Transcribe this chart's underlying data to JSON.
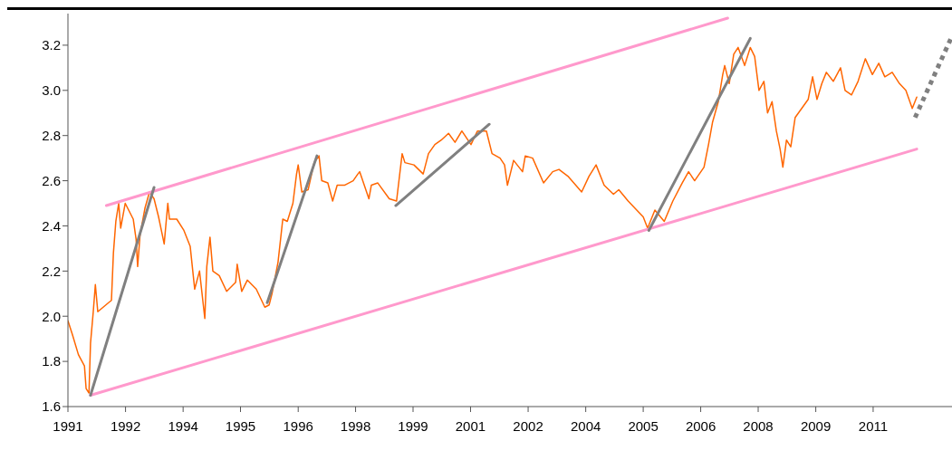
{
  "chart_data": {
    "type": "line",
    "xlim": [
      "1991-03-13",
      "2013-03-05"
    ],
    "ylim": [
      1.6,
      3.34
    ],
    "xticks": [
      {
        "value": "1991-03-13",
        "label": "1991"
      },
      {
        "value": "1992-08-17",
        "label": "1992"
      },
      {
        "value": "1994-01-22",
        "label": "1994"
      },
      {
        "value": "1995-06-27",
        "label": "1995"
      },
      {
        "value": "1996-12-02",
        "label": "1996"
      },
      {
        "value": "1998-05-07",
        "label": "1998"
      },
      {
        "value": "1999-10-11",
        "label": "1999"
      },
      {
        "value": "2001-03-16",
        "label": "2001"
      },
      {
        "value": "2002-08-21",
        "label": "2002"
      },
      {
        "value": "2004-01-26",
        "label": "2004"
      },
      {
        "value": "2005-07-01",
        "label": "2005"
      },
      {
        "value": "2006-12-05",
        "label": "2006"
      },
      {
        "value": "2008-05-10",
        "label": "2008"
      },
      {
        "value": "2009-10-15",
        "label": "2009"
      },
      {
        "value": "2011-03-20",
        "label": "2011"
      }
    ],
    "yticks": [
      1.6,
      1.8,
      {
        "value": 2,
        "label": "2.0"
      },
      2.2,
      2.4,
      2.6,
      2.8,
      {
        "value": 3,
        "label": "3.0"
      },
      3.2
    ],
    "grid": false,
    "marker": "none",
    "line_style": "solid",
    "series": [
      {
        "color": "#ff6600",
        "x": [
          "1991-03-13",
          "1991-04-22",
          "1991-06-16",
          "1991-08-10",
          "1991-08-25",
          "1991-09-20",
          "1991-10-04",
          "1991-10-29",
          "1991-11-17",
          "1991-12-09",
          "1992-03-16",
          "1992-04-11",
          "1992-04-29",
          "1992-05-21",
          "1992-06-16",
          "1992-07-04",
          "1992-08-14",
          "1992-10-26",
          "1992-11-21",
          "1992-12-05",
          "1992-12-27",
          "1993-02-10",
          "1993-03-23",
          "1993-05-03",
          "1993-06-13",
          "1993-08-03",
          "1993-09-05",
          "1993-09-20",
          "1993-11-25",
          "1994-01-29",
          "1994-03-27",
          "1994-05-07",
          "1994-06-20",
          "1994-08-07",
          "1994-08-25",
          "1994-09-23",
          "1994-10-19",
          "1994-12-16",
          "1995-02-21",
          "1995-05-14",
          "1995-05-28",
          "1995-07-08",
          "1995-08-28",
          "1995-11-17",
          "1996-02-03",
          "1996-03-13",
          "1996-04-08",
          "1996-06-02",
          "1996-07-15",
          "1996-08-25",
          "1996-10-15",
          "1996-11-17",
          "1996-12-02",
          "1997-01-04",
          "1997-03-02",
          "1997-04-26",
          "1997-06-09",
          "1997-07-04",
          "1997-08-28",
          "1997-10-11",
          "1997-11-21",
          "1998-01-26",
          "1998-04-15",
          "1998-05-28",
          "1998-06-13",
          "1998-09-05",
          "1998-09-27",
          "1998-11-25",
          "1999-03-09",
          "1999-05-14",
          "1999-07-04",
          "1999-07-29",
          "1999-10-19",
          "2000-01-11",
          "2000-02-28",
          "2000-04-26",
          "2000-06-23",
          "2000-08-28",
          "2000-10-26",
          "2000-12-27",
          "2001-03-20",
          "2001-05-17",
          "2001-08-07",
          "2001-09-27",
          "2001-12-09",
          "2002-01-19",
          "2002-02-14",
          "2002-04-11",
          "2002-07-01",
          "2002-07-26",
          "2002-10-01",
          "2003-01-08",
          "2003-04-01",
          "2003-05-28",
          "2003-08-17",
          "2003-12-20",
          "2004-02-25",
          "2004-04-29",
          "2004-07-11",
          "2004-10-04",
          "2004-11-21",
          "2005-02-14",
          "2005-05-03",
          "2005-07-01",
          "2005-08-10",
          "2005-10-15",
          "2006-01-08",
          "2006-03-27",
          "2006-06-20",
          "2006-08-17",
          "2006-10-11",
          "2007-01-04",
          "2007-02-14",
          "2007-03-23",
          "2007-05-14",
          "2007-06-23",
          "2007-07-11",
          "2007-08-21",
          "2007-10-01",
          "2007-11-10",
          "2008-01-08",
          "2008-02-28",
          "2008-04-08",
          "2008-05-17",
          "2008-07-01",
          "2008-08-03",
          "2008-09-13",
          "2008-10-22",
          "2008-11-25",
          "2008-12-20",
          "2009-01-22",
          "2009-03-02",
          "2009-04-11",
          "2009-06-09",
          "2009-08-07",
          "2009-09-16",
          "2009-10-26",
          "2009-12-09",
          "2010-01-19",
          "2010-03-23",
          "2010-05-28",
          "2010-07-08",
          "2010-09-05",
          "2010-11-03",
          "2011-01-08",
          "2011-03-13",
          "2011-05-10",
          "2011-07-04",
          "2011-09-09",
          "2011-11-14",
          "2012-01-11",
          "2012-03-09",
          "2012-04-19"
        ],
        "values": [
          1.98,
          1.92,
          1.83,
          1.78,
          1.68,
          1.66,
          1.88,
          2.02,
          2.14,
          2.02,
          2.06,
          2.07,
          2.28,
          2.42,
          2.5,
          2.39,
          2.5,
          2.43,
          2.34,
          2.22,
          2.36,
          2.48,
          2.55,
          2.52,
          2.44,
          2.32,
          2.5,
          2.43,
          2.43,
          2.38,
          2.31,
          2.12,
          2.2,
          1.99,
          2.22,
          2.35,
          2.2,
          2.18,
          2.11,
          2.15,
          2.23,
          2.11,
          2.16,
          2.12,
          2.04,
          2.05,
          2.1,
          2.24,
          2.43,
          2.42,
          2.5,
          2.63,
          2.67,
          2.55,
          2.56,
          2.68,
          2.71,
          2.6,
          2.59,
          2.51,
          2.58,
          2.58,
          2.6,
          2.63,
          2.64,
          2.52,
          2.58,
          2.59,
          2.52,
          2.51,
          2.72,
          2.68,
          2.67,
          2.63,
          2.72,
          2.76,
          2.78,
          2.81,
          2.77,
          2.82,
          2.76,
          2.82,
          2.82,
          2.72,
          2.7,
          2.67,
          2.58,
          2.69,
          2.64,
          2.71,
          2.7,
          2.59,
          2.64,
          2.65,
          2.62,
          2.55,
          2.62,
          2.67,
          2.58,
          2.54,
          2.56,
          2.51,
          2.47,
          2.44,
          2.39,
          2.47,
          2.42,
          2.51,
          2.59,
          2.64,
          2.6,
          2.66,
          2.76,
          2.86,
          2.95,
          3.07,
          3.11,
          3.03,
          3.16,
          3.19,
          3.11,
          3.19,
          3.15,
          3.0,
          3.04,
          2.9,
          2.95,
          2.82,
          2.74,
          2.66,
          2.78,
          2.75,
          2.88,
          2.92,
          2.96,
          3.06,
          2.96,
          3.03,
          3.08,
          3.04,
          3.1,
          3.0,
          2.98,
          3.04,
          3.14,
          3.07,
          3.12,
          3.06,
          3.08,
          3.03,
          3.0,
          2.92,
          2.97
        ]
      },
      {
        "color": "#ff99cc",
        "x": [
          "1992-02-25",
          "2007-08-07"
        ],
        "values": [
          2.49,
          3.32
        ]
      },
      {
        "color": "#ff99cc",
        "x": [
          "1991-10-04",
          "2012-04-19"
        ],
        "values": [
          1.65,
          2.74
        ]
      },
      {
        "color": "#808080",
        "x": [
          "1991-10-04",
          "1993-05-03"
        ],
        "values": [
          1.65,
          2.57
        ]
      },
      {
        "color": "#808080",
        "x": [
          "1996-02-25",
          "1997-05-21"
        ],
        "values": [
          2.06,
          2.71
        ]
      },
      {
        "color": "#808080",
        "x": [
          "1999-05-07",
          "2001-09-02"
        ],
        "values": [
          2.49,
          2.85
        ]
      },
      {
        "color": "#808080",
        "x": [
          "2005-08-21",
          "2008-02-28"
        ],
        "values": [
          2.38,
          3.23
        ]
      },
      {
        "color": "#808080",
        "x": [
          "2012-04-04",
          "2013-03-05"
        ],
        "values": [
          2.88,
          3.24
        ],
        "line_style": "dotted"
      }
    ]
  }
}
